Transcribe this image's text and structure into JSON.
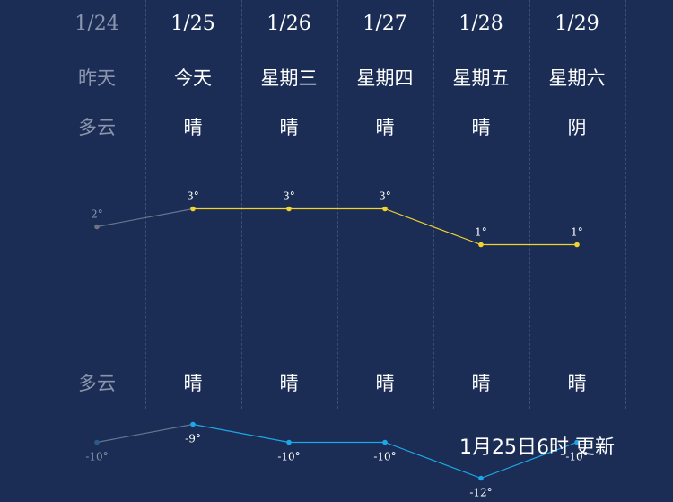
{
  "days": [
    {
      "date": "1/24",
      "weekday": "昨天",
      "weather_day": "多云",
      "weather_night": "多云",
      "past": true
    },
    {
      "date": "1/25",
      "weekday": "今天",
      "weather_day": "晴",
      "weather_night": "晴",
      "past": false
    },
    {
      "date": "1/26",
      "weekday": "星期三",
      "weather_day": "晴",
      "weather_night": "晴",
      "past": false
    },
    {
      "date": "1/27",
      "weekday": "星期四",
      "weather_day": "晴",
      "weather_night": "晴",
      "past": false
    },
    {
      "date": "1/28",
      "weekday": "星期五",
      "weather_day": "晴",
      "weather_night": "晴",
      "past": false
    },
    {
      "date": "1/29",
      "weekday": "星期六",
      "weather_day": "阴",
      "weather_night": "晴",
      "past": false
    }
  ],
  "update_text": "1月25日6时 更新",
  "colors": {
    "high": "#f2d22e",
    "low": "#1ea7e8",
    "past": "#66758f",
    "bg": "#1b2d55"
  },
  "chart_data": {
    "type": "line",
    "categories": [
      "1/24",
      "1/25",
      "1/26",
      "1/27",
      "1/28",
      "1/29"
    ],
    "series": [
      {
        "values": [
          2,
          3,
          3,
          3,
          1,
          1
        ]
      },
      {
        "values": [
          -10,
          -9,
          -10,
          -10,
          -12,
          -10
        ]
      }
    ],
    "unit": "°"
  }
}
